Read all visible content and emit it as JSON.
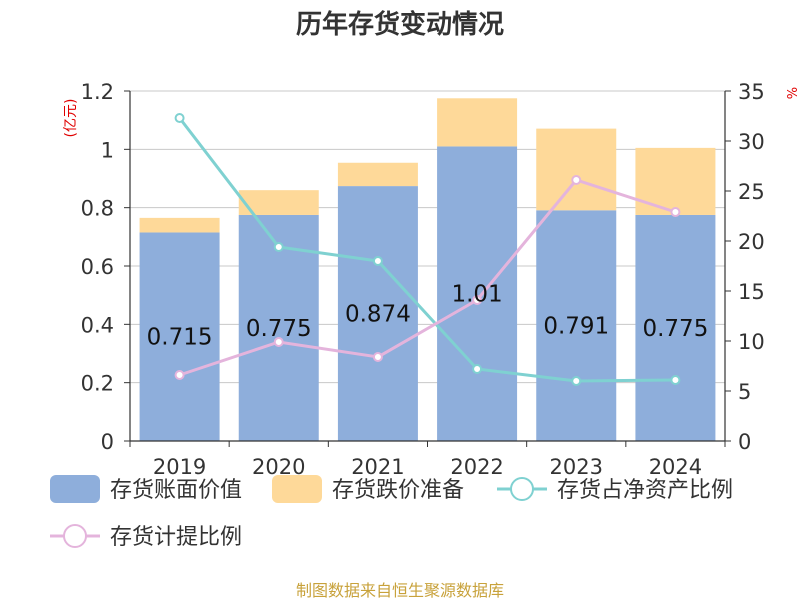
{
  "chart_data": {
    "type": "bar",
    "title": "历年存货变动情况",
    "categories": [
      "2019",
      "2020",
      "2021",
      "2022",
      "2023",
      "2024"
    ],
    "series": [
      {
        "name": "存货账面价值",
        "kind": "bar",
        "stack": "a",
        "axis": "left",
        "color": "#8eaedb",
        "values": [
          0.715,
          0.775,
          0.874,
          1.01,
          0.791,
          0.775
        ],
        "labels": [
          "0.715",
          "0.775",
          "0.874",
          "1.01",
          "0.791",
          "0.775"
        ]
      },
      {
        "name": "存货跌价准备",
        "kind": "bar",
        "stack": "a",
        "axis": "left",
        "color": "#fed999",
        "values": [
          0.05,
          0.085,
          0.08,
          0.165,
          0.28,
          0.23
        ]
      },
      {
        "name": "存货占净资产比例",
        "kind": "line",
        "axis": "right",
        "color": "#7fd1d1",
        "values": [
          32.3,
          19.4,
          18.0,
          7.2,
          6.0,
          6.1
        ]
      },
      {
        "name": "存货计提比例",
        "kind": "line",
        "axis": "right",
        "color": "#e4b4dc",
        "values": [
          6.6,
          9.9,
          8.4,
          14.1,
          26.1,
          22.9
        ]
      }
    ],
    "y_left": {
      "unit": "(亿元)",
      "min": 0,
      "max": 1.2,
      "ticks": [
        "0",
        "0.2",
        "0.4",
        "0.6",
        "0.8",
        "1",
        "1.2"
      ]
    },
    "y_right": {
      "unit": "%",
      "min": 0,
      "max": 35,
      "ticks": [
        "0",
        "5",
        "10",
        "15",
        "20",
        "25",
        "30",
        "35"
      ]
    },
    "grid": true,
    "legend_position": "bottom"
  },
  "source": "制图数据来自恒生聚源数据库"
}
